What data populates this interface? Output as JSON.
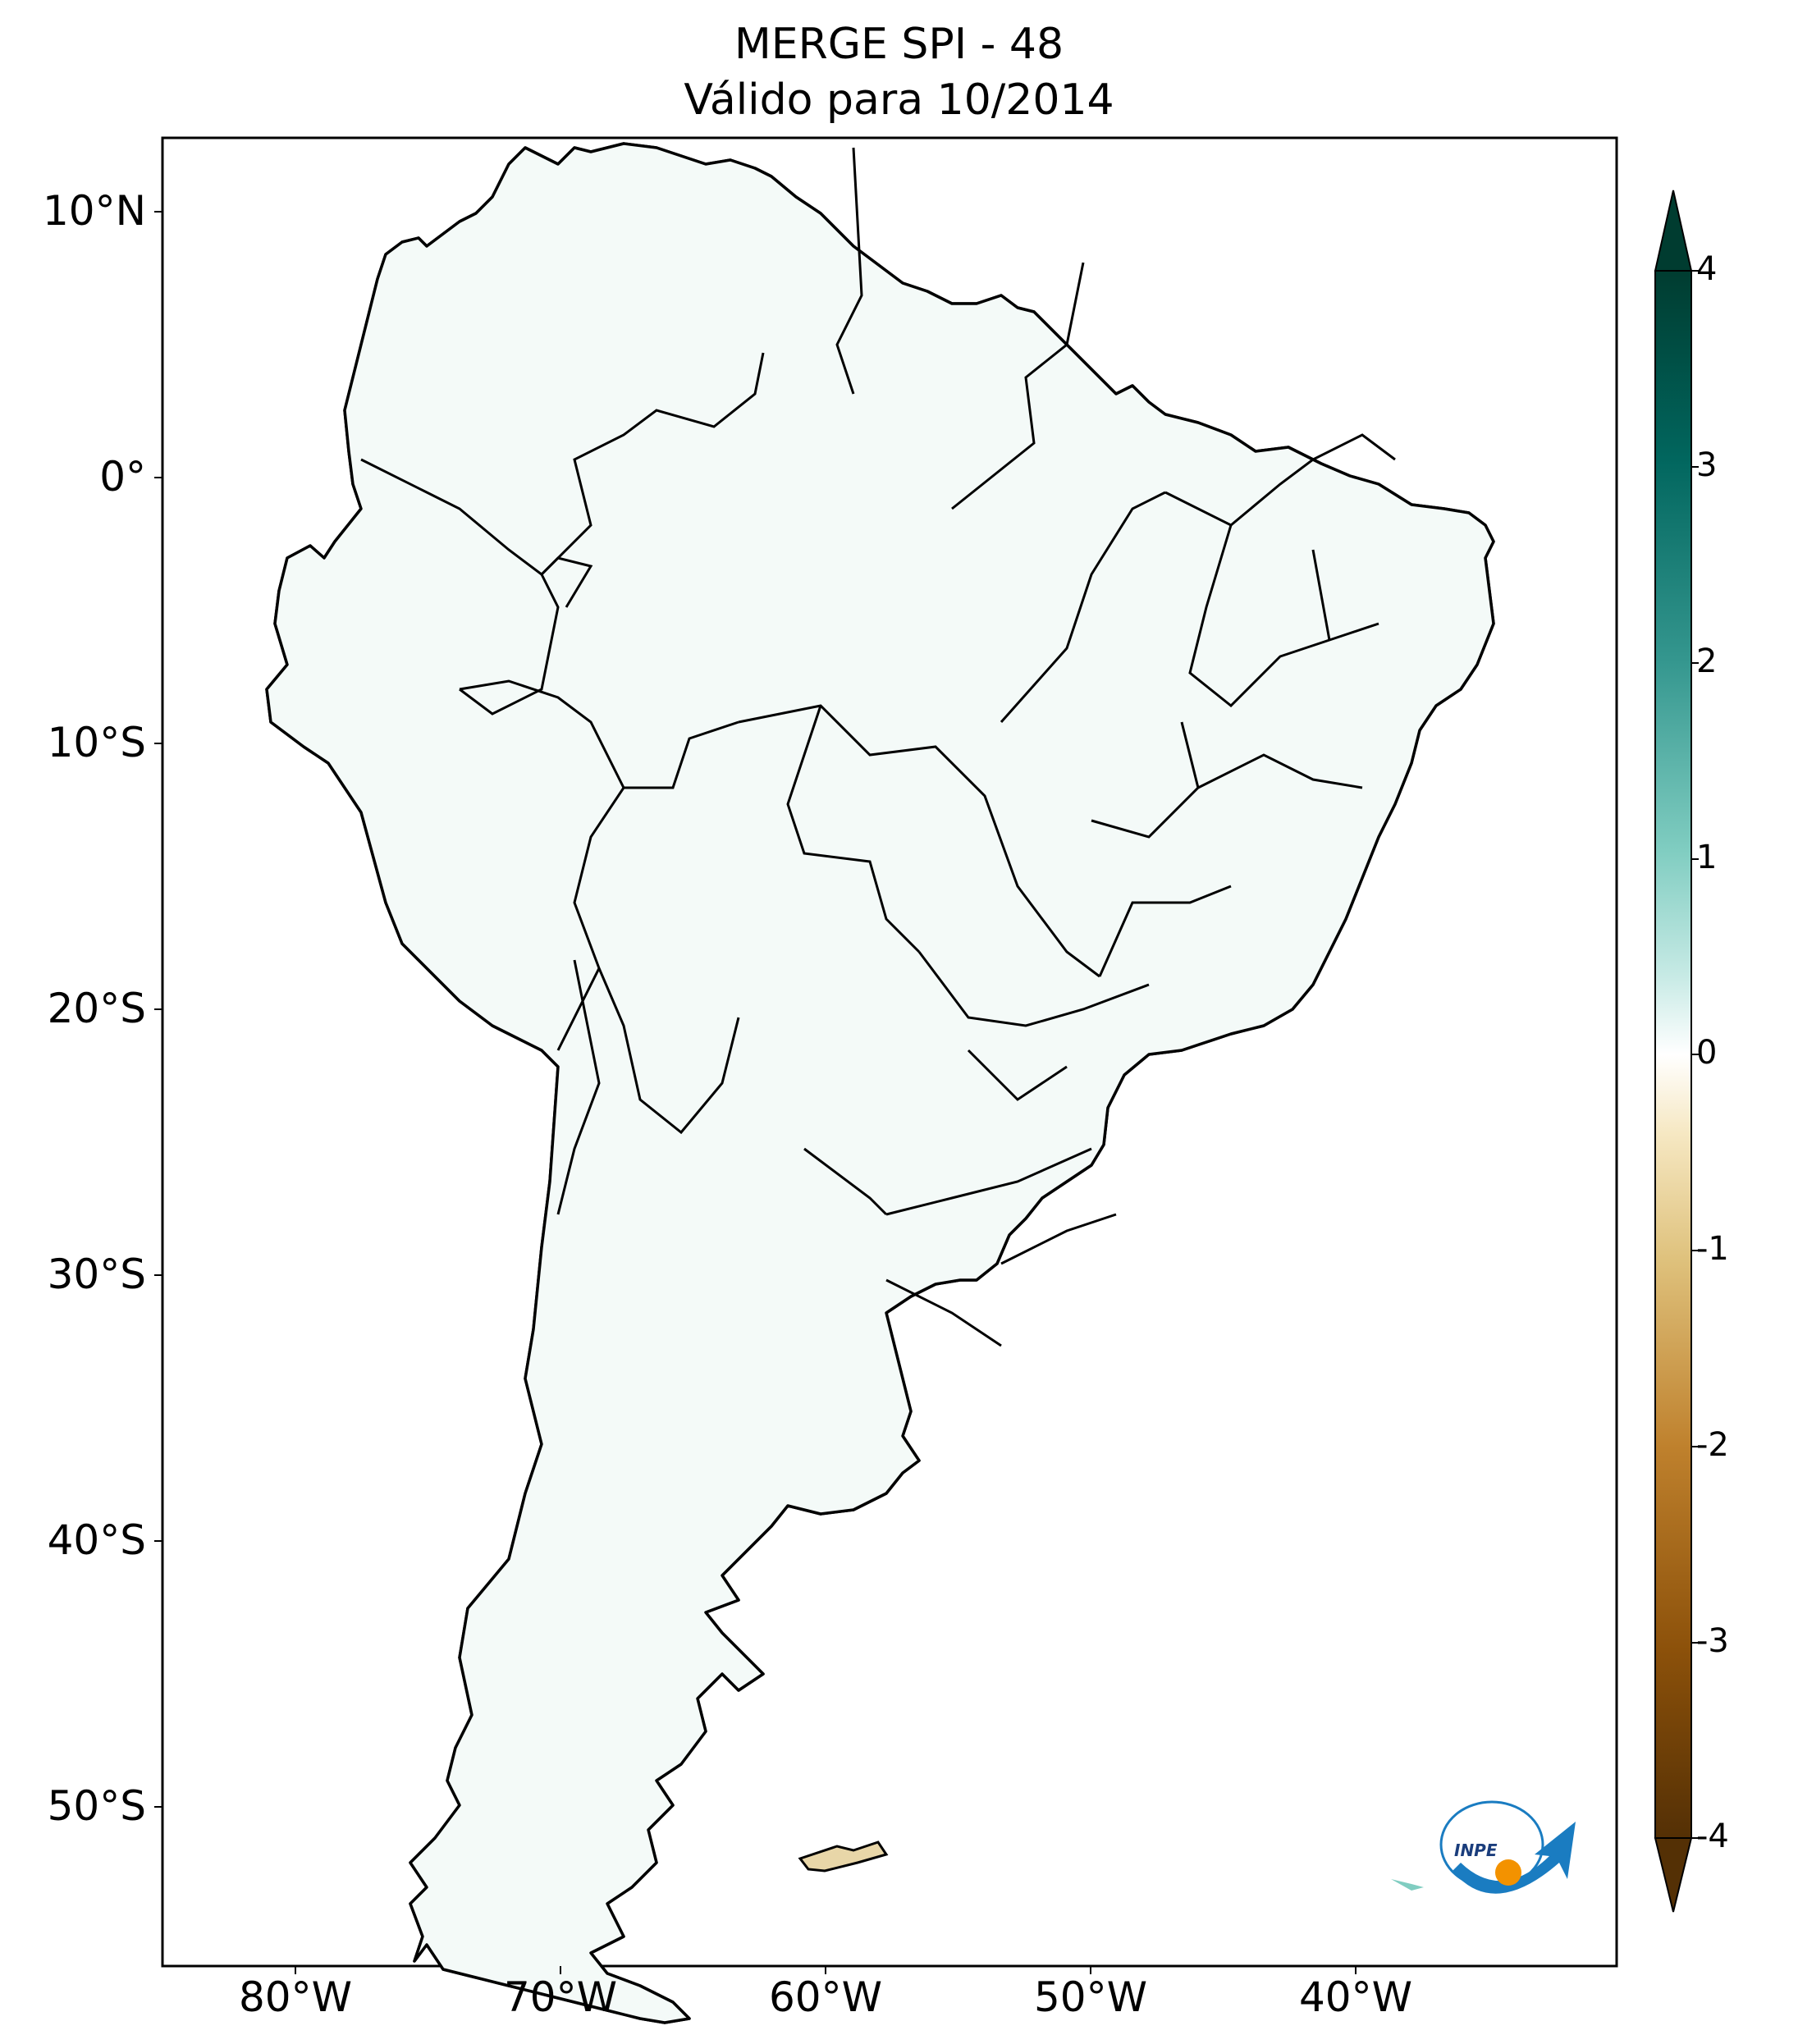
{
  "title": {
    "line1": "MERGE   SPI - 48",
    "line2": "Válido para 10/2014"
  },
  "map": {
    "lat_ticks": [
      {
        "label": "10°N",
        "value": 10
      },
      {
        "label": "0°",
        "value": 0
      },
      {
        "label": "10°S",
        "value": -10
      },
      {
        "label": "20°S",
        "value": -20
      },
      {
        "label": "30°S",
        "value": -30
      },
      {
        "label": "40°S",
        "value": -40
      },
      {
        "label": "50°S",
        "value": -50
      }
    ],
    "lon_ticks": [
      {
        "label": "80°W",
        "value": -80
      },
      {
        "label": "70°W",
        "value": -70
      },
      {
        "label": "60°W",
        "value": -60
      },
      {
        "label": "50°W",
        "value": -50
      },
      {
        "label": "40°W",
        "value": -40
      }
    ],
    "extent": {
      "lon": [
        -85,
        -30
      ],
      "lat": [
        -56,
        13
      ]
    }
  },
  "colorbar": {
    "ticks": [
      "4",
      "3",
      "2",
      "1",
      "0",
      "-1",
      "-2",
      "-3",
      "-4"
    ],
    "range": [
      -4,
      4
    ],
    "extend": "both",
    "colors": [
      "#543005",
      "#8c510a",
      "#bf812d",
      "#dfc27d",
      "#f6e8c3",
      "#ffffff",
      "#c7eae5",
      "#80cdc1",
      "#35978f",
      "#01665e",
      "#003c30"
    ]
  },
  "logo": {
    "text": "INPE"
  },
  "colors": {
    "land_border": "#000000",
    "frame": "#000000"
  }
}
